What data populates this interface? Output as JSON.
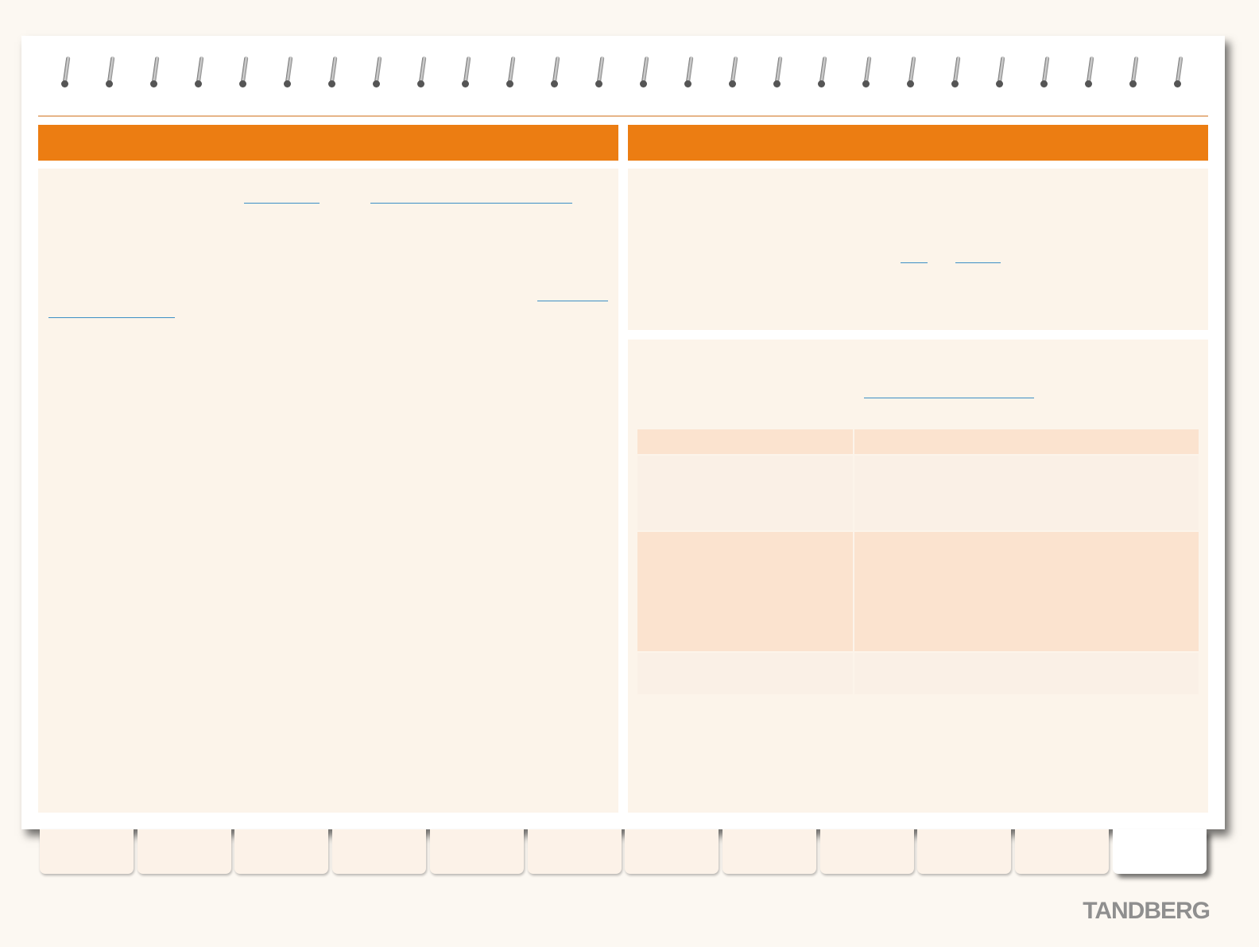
{
  "brand": {
    "logo_text": "TANDBERG",
    "accent_color": "#ec7d12",
    "link_color": "#3c8fc5"
  },
  "left_column": {
    "header": ""
  },
  "right_column": {
    "header": ""
  },
  "table": {
    "header": [
      "",
      ""
    ],
    "rows": [
      [
        "",
        ""
      ],
      [
        "",
        ""
      ],
      [
        "",
        ""
      ]
    ]
  },
  "tabs": [
    {
      "label": ""
    },
    {
      "label": ""
    },
    {
      "label": ""
    },
    {
      "label": ""
    },
    {
      "label": ""
    },
    {
      "label": ""
    },
    {
      "label": ""
    },
    {
      "label": ""
    },
    {
      "label": ""
    },
    {
      "label": ""
    },
    {
      "label": ""
    },
    {
      "label": ""
    }
  ]
}
